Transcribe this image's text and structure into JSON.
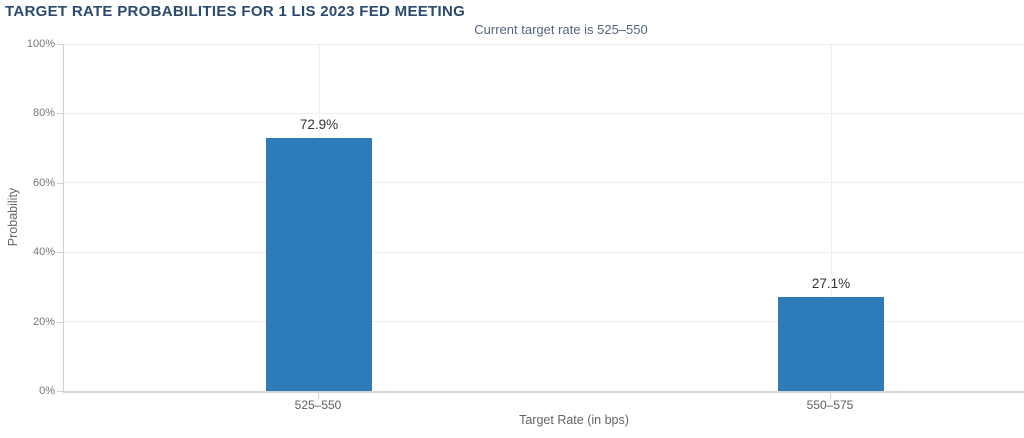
{
  "header": {
    "title": "TARGET RATE PROBABILITIES FOR 1 LIS 2023 FED MEETING",
    "subtitle": "Current target rate is 525–550"
  },
  "colors": {
    "title_text": "#2b4a6f",
    "subtitle_text": "#54657e",
    "bar_fill": "#2d7cb9",
    "gridline": "#ededed",
    "axis_line": "#cfcfcf",
    "tick_label": "#787878",
    "value_label": "#333333"
  },
  "chart_data": {
    "type": "bar",
    "title": "TARGET RATE PROBABILITIES FOR 1 LIS 2023 FED MEETING",
    "subtitle": "Current target rate is 525–550",
    "categories": [
      "525–550",
      "550–575"
    ],
    "values": [
      72.9,
      27.1
    ],
    "value_labels": [
      "72.9%",
      "27.1%"
    ],
    "xlabel": "Target Rate (in bps)",
    "ylabel": "Probability",
    "ylim": [
      0,
      100
    ],
    "ytick_labels": [
      "0%",
      "20%",
      "40%",
      "60%",
      "80%",
      "100%"
    ],
    "grid": "horizontal gridlines at 20% steps, vertical gridline at each category center",
    "legend": "none"
  }
}
